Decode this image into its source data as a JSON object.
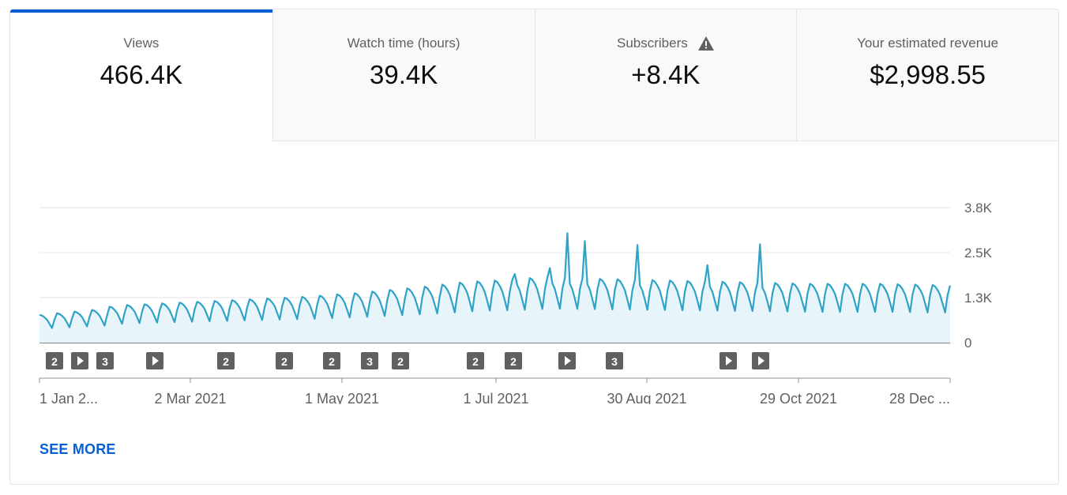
{
  "tabs": [
    {
      "label": "Views",
      "value": "466.4K",
      "selected": true
    },
    {
      "label": "Watch time (hours)",
      "value": "39.4K",
      "selected": false
    },
    {
      "label": "Subscribers",
      "value": "+8.4K",
      "selected": false,
      "icon": "warning-icon"
    },
    {
      "label": "Your estimated revenue",
      "value": "$2,998.55",
      "selected": false
    }
  ],
  "colors": {
    "line": "#2ea3c7",
    "fill": "#e7f4f9",
    "accent": "#065fd4",
    "marker": "#606060"
  },
  "chart_data": {
    "type": "area",
    "y_ticks": [
      "3.8K",
      "2.5K",
      "1.3K",
      "0"
    ],
    "ylim": [
      0,
      3800
    ],
    "x_tick_labels": [
      "1 Jan 2...",
      "2 Mar 2021",
      "1 May 2021",
      "1 Jul 2021",
      "30 Aug 2021",
      "29 Oct 2021",
      "28 Dec ..."
    ],
    "x_range": [
      "1 Jan 2021",
      "31 Dec 2021"
    ],
    "grid": true,
    "baseline": [
      680,
      720,
      760,
      800,
      880,
      920,
      940,
      960,
      980,
      1000,
      1020,
      1040,
      1060,
      1080,
      1100,
      1120,
      1150,
      1180,
      1210,
      1250,
      1290,
      1330,
      1370,
      1420,
      1470,
      1500,
      1520,
      1540,
      1580,
      1590,
      1580,
      1570,
      1560,
      1550,
      1540,
      1530,
      1520,
      1510,
      1500,
      1490,
      1480,
      1470,
      1460,
      1450,
      1440,
      1440,
      1440,
      1440,
      1440,
      1430,
      1420,
      1410,
      1400,
      1380
    ],
    "spikes": [
      {
        "week": 34,
        "value": 2750
      },
      {
        "week": 20,
        "value": 1450
      },
      {
        "week": 41,
        "value": 2770
      },
      {
        "week": 38,
        "value": 2180
      },
      {
        "week": 27,
        "value": 1930
      },
      {
        "week": 29,
        "value": 2100
      },
      {
        "week": 30,
        "value": 3080
      },
      {
        "week": 31,
        "value": 2860
      }
    ],
    "annotation_markers": [
      {
        "label": "2"
      },
      {
        "label": "▶"
      },
      {
        "label": "3"
      },
      {
        "label": "▶"
      },
      {
        "label": "2"
      },
      {
        "label": "2"
      },
      {
        "label": "2"
      },
      {
        "label": "3"
      },
      {
        "label": "2"
      },
      {
        "label": "2"
      },
      {
        "label": "2"
      },
      {
        "label": "▶"
      },
      {
        "label": "3"
      },
      {
        "label": "▶"
      },
      {
        "label": "▶"
      }
    ]
  },
  "see_more_label": "SEE MORE"
}
